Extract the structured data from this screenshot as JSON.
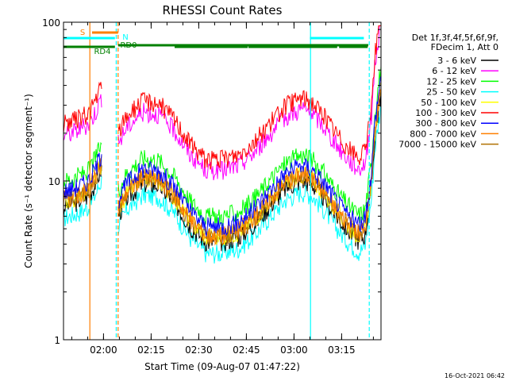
{
  "chart_data": {
    "type": "line",
    "title": "RHESSI Count Rates",
    "xlabel": "Start Time (09-Aug-07 01:47:22)",
    "ylabel": "Count Rate (s⁻¹ detector segment⁻¹)",
    "yscale": "log",
    "ylim": [
      1,
      100
    ],
    "x_range_minutes_after_start": [
      0,
      100
    ],
    "x_ticks": [
      {
        "label": "02:00",
        "min": 12.6
      },
      {
        "label": "02:15",
        "min": 27.6
      },
      {
        "label": "02:30",
        "min": 42.6
      },
      {
        "label": "02:45",
        "min": 57.6
      },
      {
        "label": "03:00",
        "min": 72.6
      },
      {
        "label": "03:15",
        "min": 87.6
      }
    ],
    "y_ticks": [
      {
        "label": "1",
        "value": 1
      },
      {
        "label": "10",
        "value": 10
      },
      {
        "label": "100",
        "value": 100
      }
    ],
    "legend_title": [
      "Det 1f,3f,4f,5f,6f,9f,",
      "FDecim 1, Att 0"
    ],
    "legend_position": "right",
    "series": [
      {
        "name": "3 - 6 keV",
        "color": "#000000",
        "level": 0.92
      },
      {
        "name": "6 - 12 keV",
        "color": "#ff00ff",
        "level": 2.6
      },
      {
        "name": "12 - 25 keV",
        "color": "#00ff00",
        "level": 1.33
      },
      {
        "name": "25 - 50 keV",
        "color": "#00ffff",
        "level": 0.78
      },
      {
        "name": "50 - 100 keV",
        "color": "#ffff00",
        "level": 1.0
      },
      {
        "name": "100 - 300 keV",
        "color": "#ff0000",
        "level": 3.05
      },
      {
        "name": "300 - 800 keV",
        "color": "#0000ff",
        "level": 1.15
      },
      {
        "name": "800 - 7000 keV",
        "color": "#ff7f00",
        "level": 1.02
      },
      {
        "name": "7000 - 15000 keV",
        "color": "#b07000",
        "level": 1.0
      }
    ],
    "profile_minutes": [
      0,
      4,
      8,
      10,
      12,
      14,
      15,
      17,
      20,
      25,
      30,
      35,
      40,
      45,
      50,
      55,
      60,
      65,
      70,
      75,
      78,
      82,
      86,
      90,
      93,
      95,
      97,
      98,
      100
    ],
    "profile_values": [
      7.5,
      8.0,
      8.8,
      10.5,
      13.0,
      null,
      null,
      6.5,
      8.5,
      10.5,
      10.2,
      8.0,
      5.6,
      4.5,
      4.5,
      4.8,
      5.8,
      7.6,
      9.8,
      11.0,
      10.5,
      8.5,
      6.5,
      5.2,
      4.6,
      5.0,
      10.0,
      20.0,
      40.0
    ],
    "states": [
      {
        "label": "S",
        "color": "#ff7f00",
        "segments": [
          [
            9.0,
            17.2
          ]
        ]
      },
      {
        "label": "N",
        "color": "#00ffff",
        "segments": [
          [
            0,
            16.2
          ],
          [
            77.6,
            94.6
          ]
        ]
      },
      {
        "label": "RD0",
        "color": "#008000",
        "segments": [
          [
            17.2,
            96.0
          ]
        ]
      },
      {
        "label": "RD4",
        "color": "#008000",
        "segments": [
          [
            0,
            16.2
          ],
          [
            35.0,
            58.0
          ],
          [
            58.2,
            86.2
          ],
          [
            86.8,
            95.8
          ]
        ]
      }
    ],
    "vertical_markers_minutes": [
      {
        "min": 8.3,
        "color": "#ff7f00",
        "style": "solid"
      },
      {
        "min": 16.6,
        "color": "#00ffff",
        "style": "dashed"
      },
      {
        "min": 17.2,
        "color": "#ff7f00",
        "style": "dashed"
      },
      {
        "min": 77.8,
        "color": "#00ffff",
        "style": "solid"
      },
      {
        "min": 96.3,
        "color": "#00ffff",
        "style": "dashed"
      }
    ]
  },
  "footer": {
    "date": "16-Oct-2021 06:42"
  }
}
